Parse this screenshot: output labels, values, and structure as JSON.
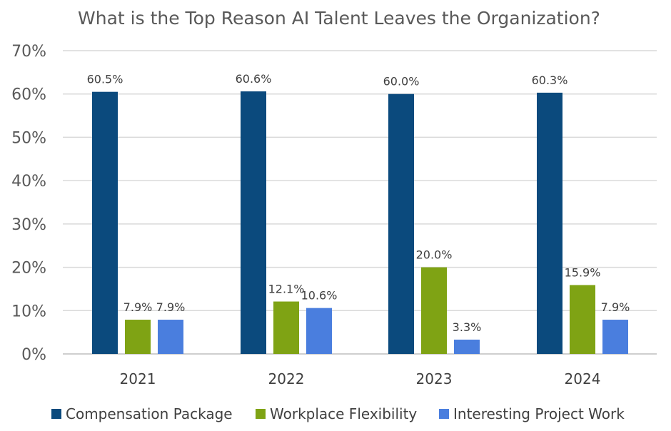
{
  "chart_data": {
    "type": "bar",
    "title": "What is the Top Reason AI Talent Leaves the Organization?",
    "categories": [
      "2021",
      "2022",
      "2023",
      "2024"
    ],
    "series": [
      {
        "name": "Compensation Package",
        "color": "#0b4a7d",
        "values": [
          60.5,
          60.6,
          60.0,
          60.3
        ],
        "labels": [
          "60.5%",
          "60.6%",
          "60.0%",
          "60.3%"
        ]
      },
      {
        "name": "Workplace Flexibility",
        "color": "#7fa314",
        "values": [
          7.9,
          12.1,
          20.0,
          15.9
        ],
        "labels": [
          "7.9%",
          "12.1%",
          "20.0%",
          "15.9%"
        ]
      },
      {
        "name": "Interesting Project Work",
        "color": "#4a7ede",
        "values": [
          7.9,
          10.6,
          3.3,
          7.9
        ],
        "labels": [
          "7.9%",
          "10.6%",
          "3.3%",
          "7.9%"
        ]
      }
    ],
    "yticks": [
      "0%",
      "10%",
      "20%",
      "30%",
      "40%",
      "50%",
      "60%",
      "70%"
    ],
    "ylim": [
      0,
      70
    ],
    "xlabel": "",
    "ylabel": "",
    "grid": true,
    "legend_position": "bottom"
  }
}
